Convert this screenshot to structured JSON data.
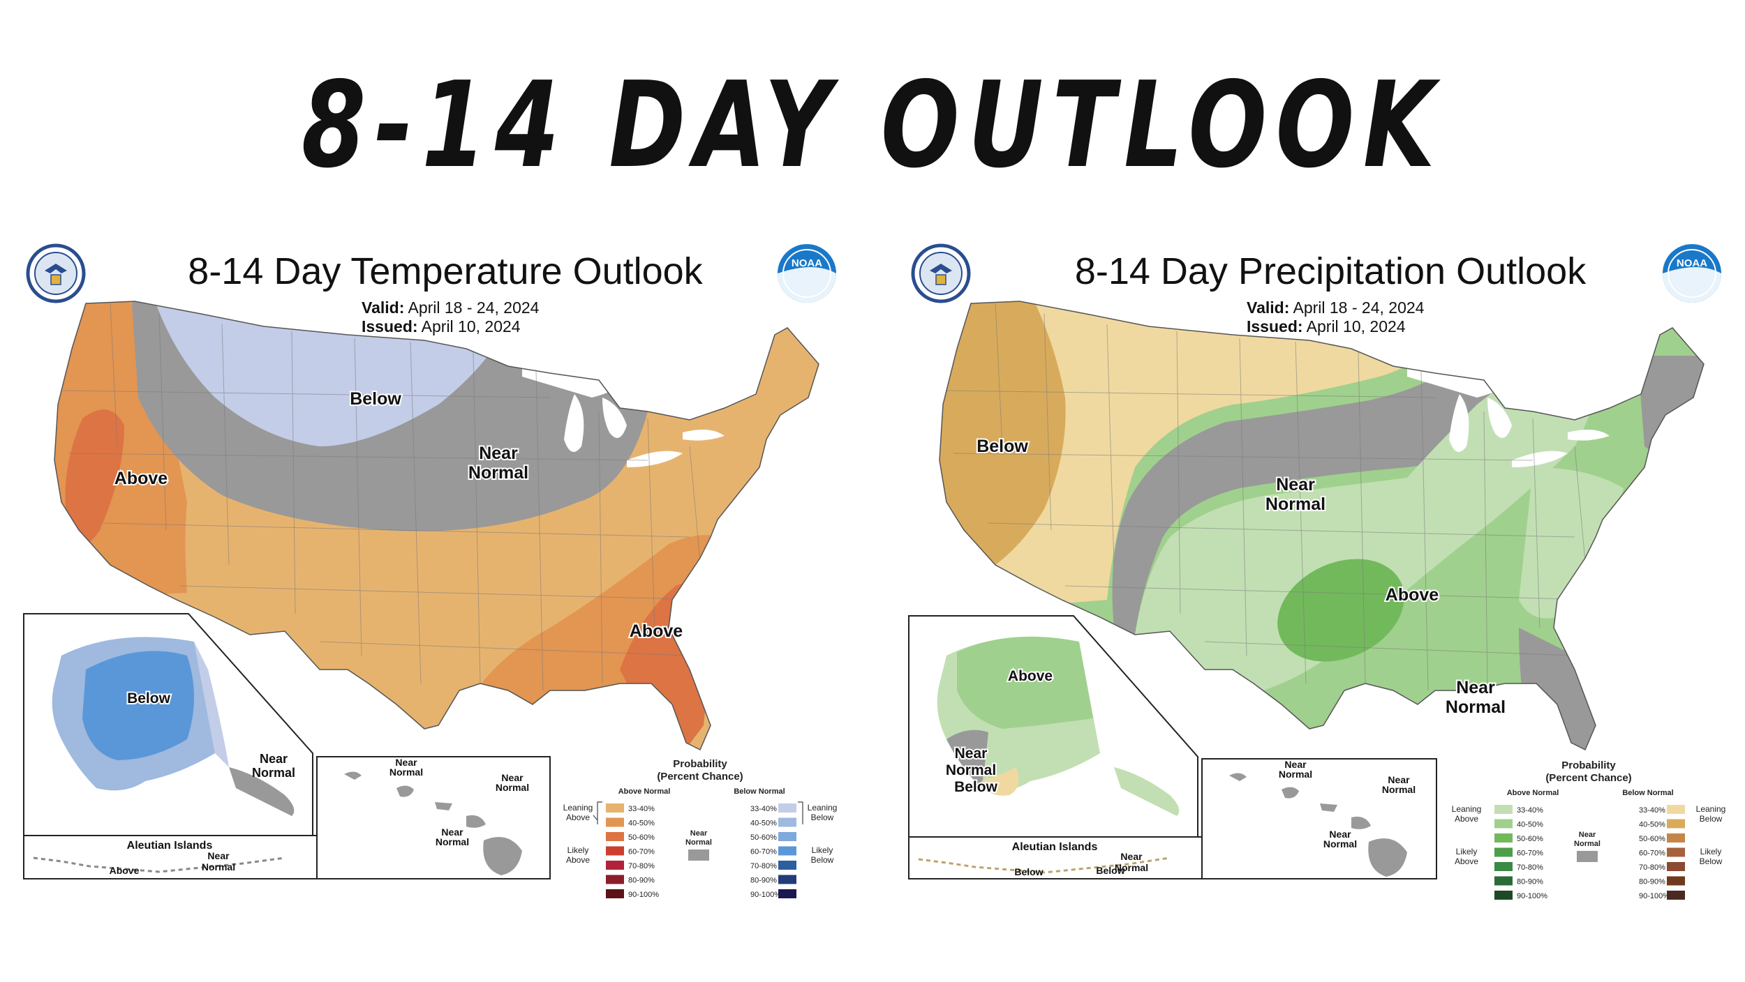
{
  "page": {
    "title": "8-14 DAY OUTLOOK"
  },
  "panels": [
    {
      "title": "8-14 Day Temperature Outlook",
      "valid_label": "Valid:",
      "valid": "April 18 - 24, 2024",
      "issued_label": "Issued:",
      "issued": "April 10, 2024",
      "regions": {
        "below": "Below",
        "near1": "Near",
        "near2": "Normal",
        "above_west": "Above",
        "above_east": "Above"
      },
      "insets": {
        "alaska_below": "Below",
        "alaska_near1": "Near",
        "alaska_near2": "Normal",
        "aleutian_title": "Aleutian Islands",
        "aleutian_above": "Above",
        "aleutian_near1": "Near",
        "aleutian_near2": "Normal",
        "hawaii_near1": "Near",
        "hawaii_near2": "Normal"
      },
      "legend": {
        "title1": "Probability",
        "title2": "(Percent Chance)",
        "col_above": "Above Normal",
        "col_below": "Below Normal",
        "leaning_above1": "Leaning",
        "leaning_above2": "Above",
        "likely_above1": "Likely",
        "likely_above2": "Above",
        "leaning_below1": "Leaning",
        "leaning_below2": "Below",
        "likely_below1": "Likely",
        "likely_below2": "Below",
        "near1": "Near",
        "near2": "Normal",
        "ranges": [
          "33-40%",
          "40-50%",
          "50-60%",
          "60-70%",
          "70-80%",
          "80-90%",
          "90-100%"
        ],
        "above_colors": [
          "#e6b36f",
          "#e39552",
          "#dd7443",
          "#cc3e2e",
          "#b0233a",
          "#8a1e2a",
          "#5a1417"
        ],
        "below_colors": [
          "#c3cde8",
          "#9fb9df",
          "#7fa8dc",
          "#5a97d8",
          "#2c5f9d",
          "#223c7a",
          "#1a1850"
        ],
        "near_color": "#999999"
      }
    },
    {
      "title": "8-14 Day Precipitation Outlook",
      "valid_label": "Valid:",
      "valid": "April 18 - 24, 2024",
      "issued_label": "Issued:",
      "issued": "April 10, 2024",
      "regions": {
        "below": "Below",
        "near1": "Near",
        "near2": "Normal",
        "above": "Above",
        "near_se1": "Near",
        "near_se2": "Normal"
      },
      "insets": {
        "alaska_above": "Above",
        "alaska_near1": "Near",
        "alaska_near2": "Normal",
        "alaska_below": "Below",
        "aleutian_title": "Aleutian Islands",
        "aleutian_near1": "Near",
        "aleutian_near2": "Normal",
        "aleutian_below1": "Below",
        "aleutian_below2": "Below",
        "hawaii_near_a1": "Near",
        "hawaii_near_a2": "Normal",
        "hawaii_near_b1": "Near",
        "hawaii_near_b2": "Normal",
        "hawaii_near_c1": "Near",
        "hawaii_near_c2": "Normal"
      },
      "legend": {
        "title1": "Probability",
        "title2": "(Percent Chance)",
        "col_above": "Above Normal",
        "col_below": "Below Normal",
        "leaning_above1": "Leaning",
        "leaning_above2": "Above",
        "likely_above1": "Likely",
        "likely_above2": "Above",
        "leaning_below1": "Leaning",
        "leaning_below2": "Below",
        "likely_below1": "Likely",
        "likely_below2": "Below",
        "near1": "Near",
        "near2": "Normal",
        "ranges": [
          "33-40%",
          "40-50%",
          "50-60%",
          "60-70%",
          "70-80%",
          "80-90%",
          "90-100%"
        ],
        "above_colors": [
          "#c2dfb3",
          "#a0d08d",
          "#72b95c",
          "#4e9e4a",
          "#3b8a45",
          "#2b6b38",
          "#1d4a25"
        ],
        "below_colors": [
          "#f0d9a0",
          "#d8ab5c",
          "#c48647",
          "#a6613d",
          "#8a4a33",
          "#6f3a1e",
          "#4a2a20"
        ],
        "near_color": "#999999"
      }
    }
  ],
  "colors": {
    "temp_above_lean": "#e6b36f",
    "temp_above_40": "#e39552",
    "temp_above_50": "#dd7443",
    "temp_below_lean": "#c3cde8",
    "alaska_below_lean": "#9fb9df",
    "alaska_below_50": "#5a97d8",
    "precip_above_lean": "#c2dfb3",
    "precip_above_40": "#a0d08d",
    "precip_above_50": "#72b95c",
    "precip_below_lean": "#f0d9a0",
    "precip_below_40": "#d8ab5c",
    "near": "#999999",
    "land_none": "#ffffff",
    "seal_blue": "#2a4d8f",
    "noaa_blue": "#1a78c9"
  },
  "icons": [
    "commerce-seal-icon",
    "noaa-logo-icon"
  ]
}
